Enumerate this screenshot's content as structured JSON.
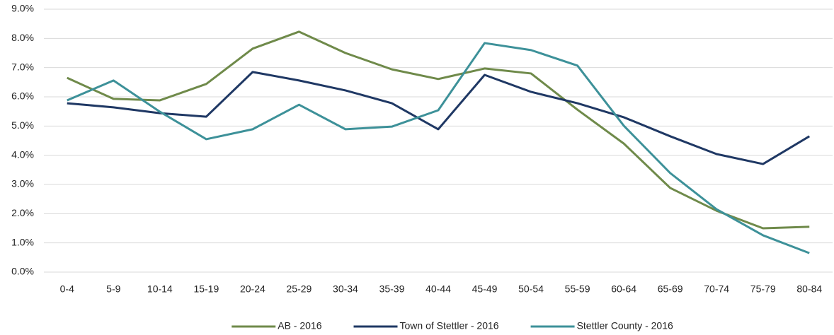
{
  "chart_data": {
    "type": "line",
    "categories": [
      "0-4",
      "5-9",
      "10-14",
      "15-19",
      "20-24",
      "25-29",
      "30-34",
      "35-39",
      "40-44",
      "45-49",
      "50-54",
      "55-59",
      "60-64",
      "65-69",
      "70-74",
      "75-79",
      "80-84"
    ],
    "series": [
      {
        "name": "AB - 2016",
        "color": "#6f8a4a",
        "values": [
          6.65,
          5.93,
          5.88,
          6.44,
          7.65,
          8.23,
          7.5,
          6.94,
          6.61,
          6.97,
          6.8,
          5.56,
          4.4,
          2.88,
          2.1,
          1.5,
          1.55
        ]
      },
      {
        "name": "Town of Stettler - 2016",
        "color": "#1f3864",
        "values": [
          5.78,
          5.64,
          5.44,
          5.32,
          6.85,
          6.56,
          6.22,
          5.78,
          4.89,
          6.75,
          6.17,
          5.78,
          5.3,
          4.65,
          4.04,
          3.7,
          4.65
        ]
      },
      {
        "name": "Stettler County - 2016",
        "color": "#3d9199",
        "values": [
          5.88,
          6.56,
          5.49,
          4.55,
          4.89,
          5.73,
          4.89,
          4.98,
          5.54,
          7.84,
          7.6,
          7.07,
          5.01,
          3.39,
          2.15,
          1.26,
          0.65
        ]
      }
    ],
    "ylim": [
      0,
      9
    ],
    "yticks": [
      {
        "value": 0,
        "label": "0.0%"
      },
      {
        "value": 1,
        "label": "1.0%"
      },
      {
        "value": 2,
        "label": "2.0%"
      },
      {
        "value": 3,
        "label": "3.0%"
      },
      {
        "value": 4,
        "label": "4.0%"
      },
      {
        "value": 5,
        "label": "5.0%"
      },
      {
        "value": 6,
        "label": "6.0%"
      },
      {
        "value": 7,
        "label": "7.0%"
      },
      {
        "value": 8,
        "label": "8.0%"
      },
      {
        "value": 9,
        "label": "9.0%"
      }
    ],
    "grid": true,
    "legend": "bottom"
  }
}
